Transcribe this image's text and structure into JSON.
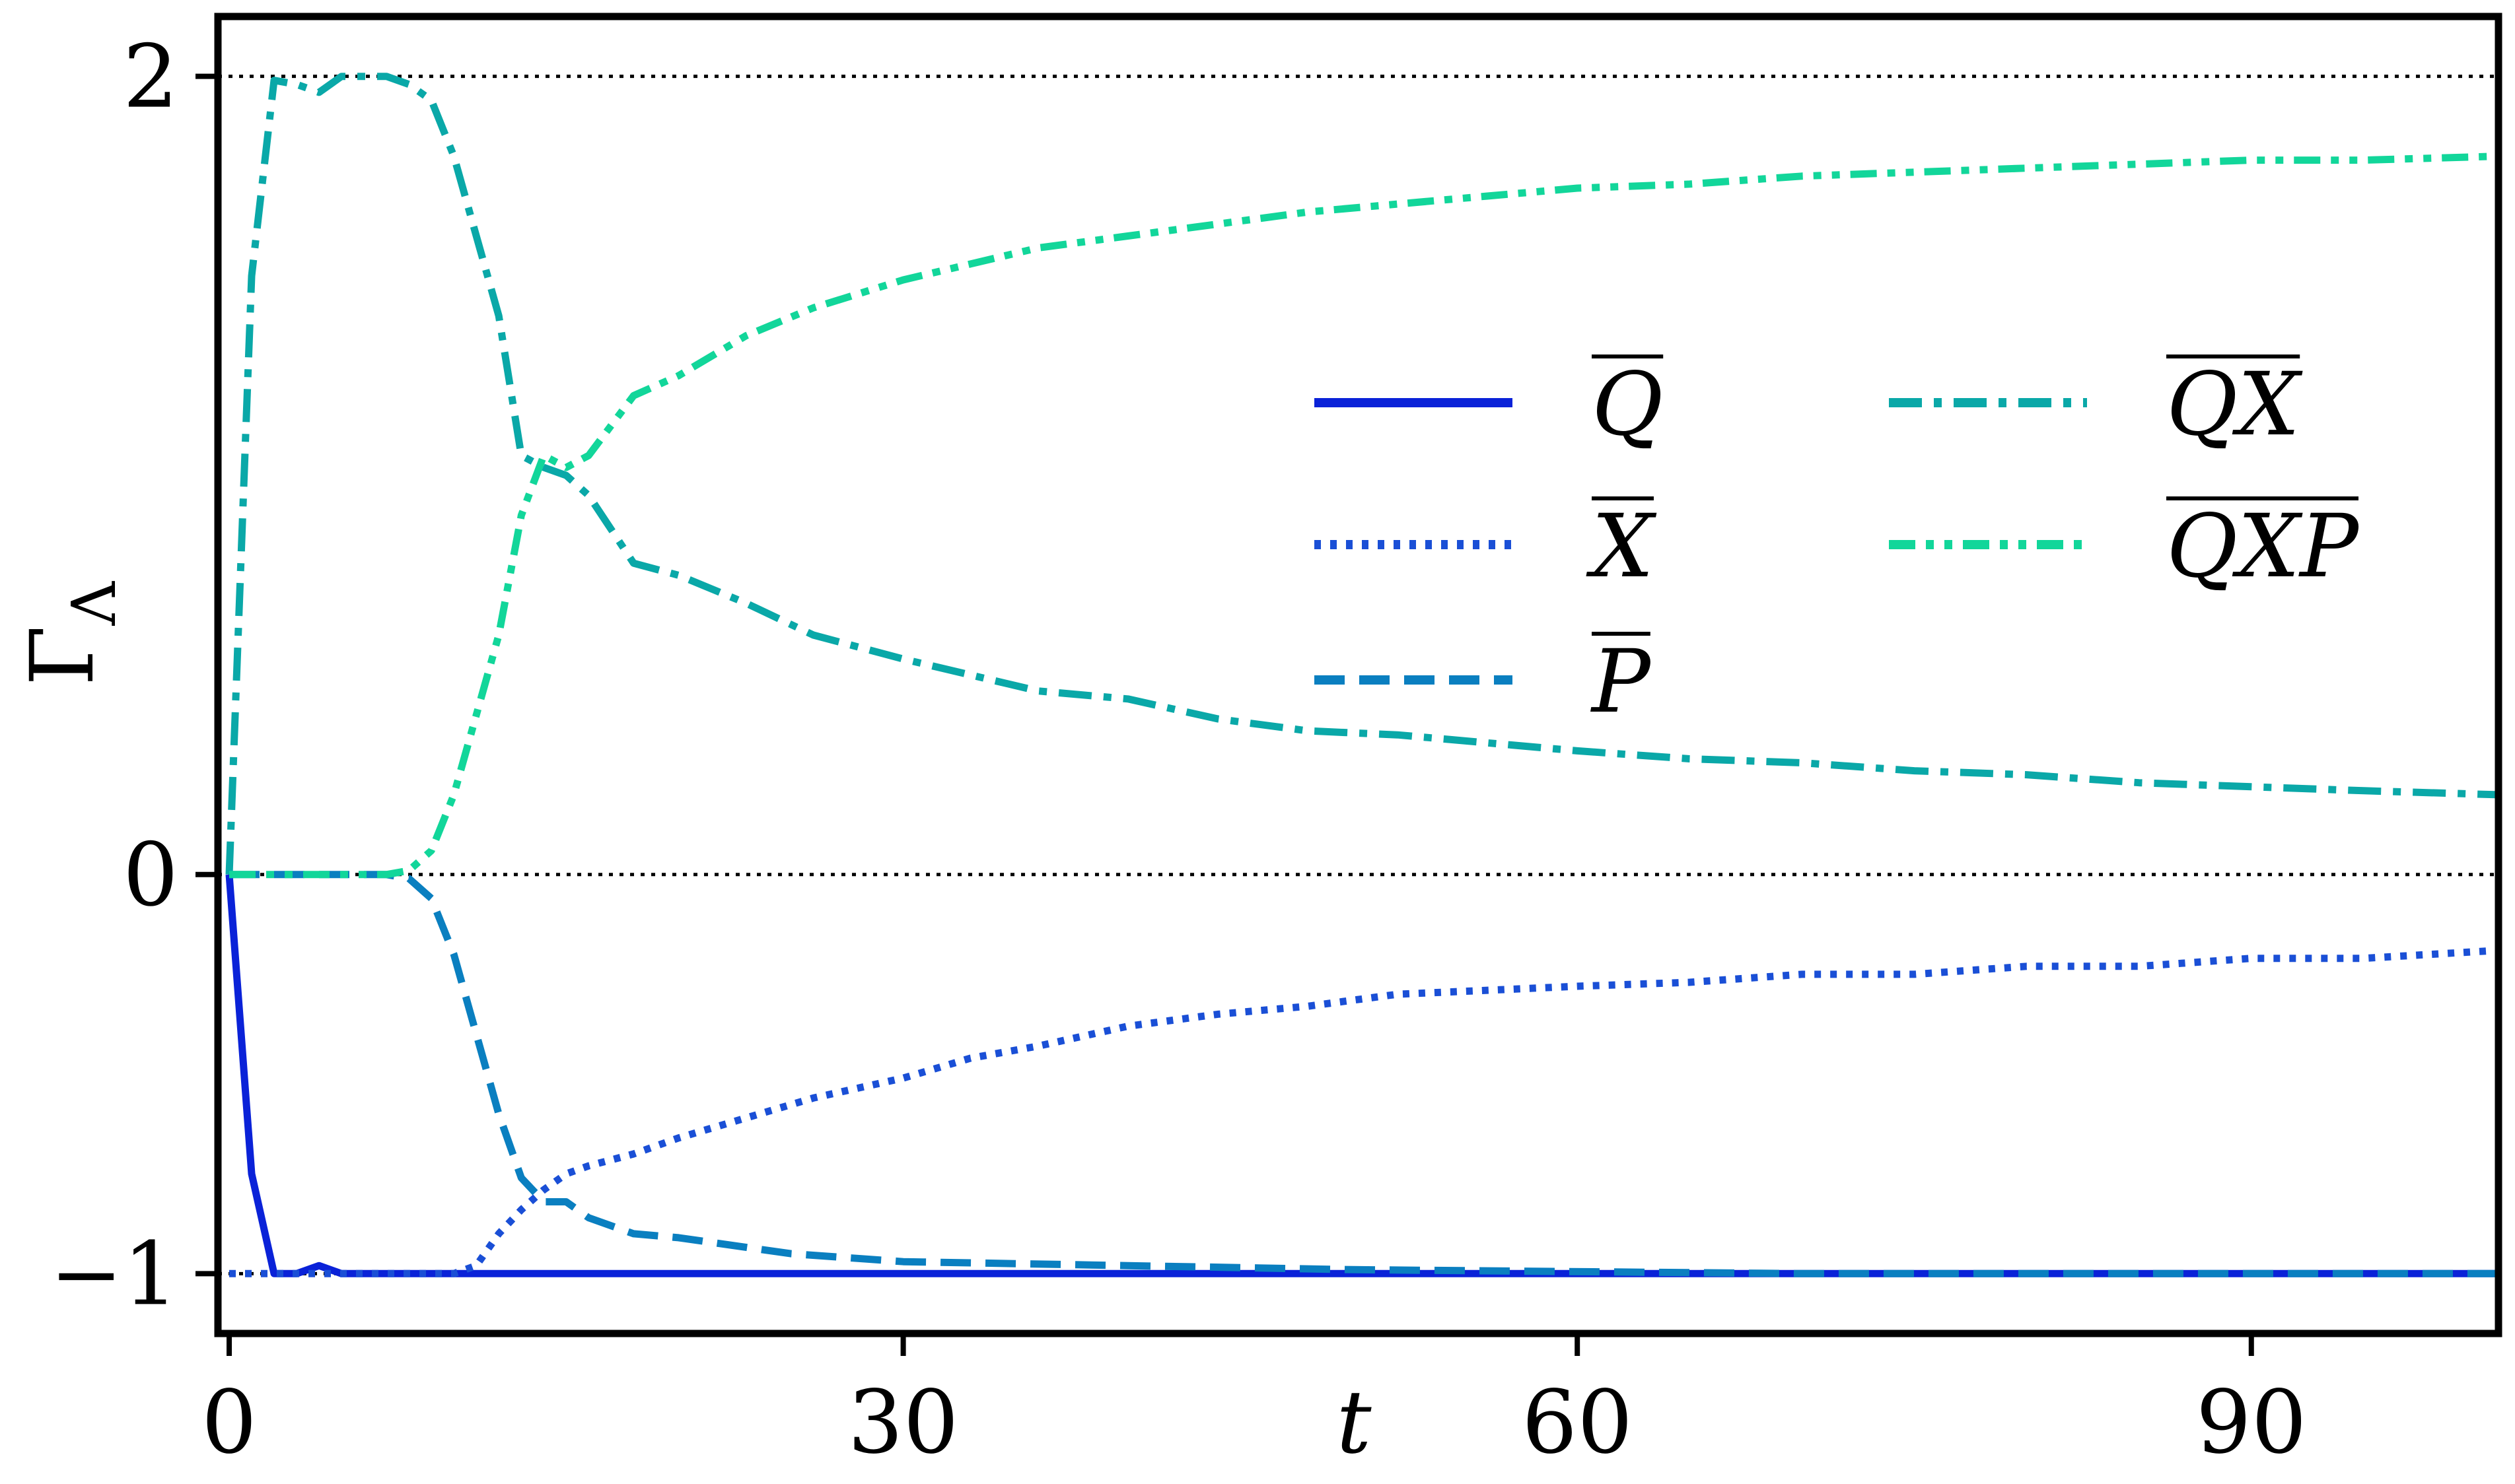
{
  "chart_data": {
    "type": "line",
    "xlabel": "t",
    "ylabel": "Γ_Λ",
    "xlim": [
      -0.5,
      101
    ],
    "ylim": [
      -1.15,
      2.15
    ],
    "x_ticks": [
      0,
      30,
      60,
      90
    ],
    "y_ticks": [
      -1,
      0,
      2
    ],
    "tick_labels": {
      "x": [
        "0",
        "30",
        "60",
        "90"
      ],
      "y": [
        "−1",
        "0",
        "2"
      ]
    },
    "reference_lines": [
      2,
      0,
      -1
    ],
    "grid": false,
    "legend_placement": "center-right, two columns",
    "series": [
      {
        "name": "Q",
        "color": "#0a22d8",
        "style": "solid",
        "x": [
          0,
          1,
          2,
          3,
          4,
          5,
          6,
          7,
          8,
          9,
          10,
          12,
          15,
          20,
          30,
          40,
          60,
          80,
          101
        ],
        "y": [
          0,
          -0.75,
          -1.0,
          -1.0,
          -0.98,
          -1.0,
          -1.0,
          -1.0,
          -1.0,
          -1.0,
          -1.0,
          -1.0,
          -1.0,
          -1.0,
          -1.0,
          -1.0,
          -1.0,
          -1.0,
          -1.0
        ]
      },
      {
        "name": "X",
        "color": "#1a4fd6",
        "style": "dotted",
        "x": [
          0,
          4,
          8,
          10,
          11,
          12,
          13,
          14,
          15,
          16,
          18,
          20,
          23,
          26,
          30,
          33,
          36,
          40,
          44,
          48,
          52,
          56,
          60,
          65,
          70,
          75,
          80,
          85,
          90,
          95,
          101
        ],
        "y": [
          -1.0,
          -1.0,
          -1.0,
          -1.0,
          -0.98,
          -0.9,
          -0.84,
          -0.79,
          -0.75,
          -0.73,
          -0.7,
          -0.66,
          -0.61,
          -0.56,
          -0.51,
          -0.46,
          -0.43,
          -0.38,
          -0.35,
          -0.33,
          -0.3,
          -0.29,
          -0.28,
          -0.27,
          -0.25,
          -0.25,
          -0.23,
          -0.23,
          -0.21,
          -0.21,
          -0.19
        ]
      },
      {
        "name": "P",
        "color": "#0a7fc0",
        "style": "dashed",
        "x": [
          0,
          4,
          7,
          8,
          9,
          10,
          11,
          12,
          13,
          14,
          15,
          16,
          18,
          20,
          25,
          30,
          40,
          50,
          70,
          101
        ],
        "y": [
          0,
          0,
          0,
          -0.01,
          -0.06,
          -0.2,
          -0.4,
          -0.6,
          -0.76,
          -0.82,
          -0.82,
          -0.86,
          -0.9,
          -0.91,
          -0.95,
          -0.97,
          -0.98,
          -0.99,
          -1.0,
          -1.0
        ]
      },
      {
        "name": "QX",
        "color": "#0aa8a8",
        "style": "dashdot",
        "x": [
          0,
          1,
          2,
          3,
          4,
          5,
          6,
          7,
          8,
          9,
          10,
          11,
          12,
          13,
          14,
          15,
          16,
          18,
          20,
          23,
          26,
          30,
          33,
          36,
          40,
          44,
          48,
          52,
          56,
          60,
          65,
          70,
          75,
          80,
          85,
          90,
          95,
          101
        ],
        "y": [
          0,
          1.5,
          1.99,
          1.98,
          1.96,
          2.0,
          2.0,
          2.0,
          1.98,
          1.94,
          1.8,
          1.6,
          1.4,
          1.05,
          1.02,
          1.0,
          0.95,
          0.78,
          0.75,
          0.68,
          0.6,
          0.54,
          0.5,
          0.46,
          0.44,
          0.39,
          0.36,
          0.35,
          0.33,
          0.31,
          0.29,
          0.28,
          0.26,
          0.25,
          0.23,
          0.22,
          0.21,
          0.2
        ]
      },
      {
        "name": "QXP",
        "color": "#12d69a",
        "style": "dashdotdot",
        "x": [
          0,
          4,
          7,
          8,
          9,
          10,
          11,
          12,
          13,
          14,
          15,
          16,
          18,
          20,
          23,
          26,
          30,
          33,
          36,
          40,
          44,
          48,
          52,
          56,
          60,
          65,
          70,
          75,
          80,
          85,
          90,
          95,
          101
        ],
        "y": [
          0,
          0,
          0,
          0.01,
          0.06,
          0.2,
          0.4,
          0.6,
          0.9,
          1.05,
          1.02,
          1.05,
          1.2,
          1.25,
          1.35,
          1.42,
          1.49,
          1.53,
          1.57,
          1.6,
          1.63,
          1.66,
          1.68,
          1.7,
          1.72,
          1.73,
          1.75,
          1.76,
          1.77,
          1.78,
          1.79,
          1.79,
          1.8
        ]
      }
    ]
  }
}
